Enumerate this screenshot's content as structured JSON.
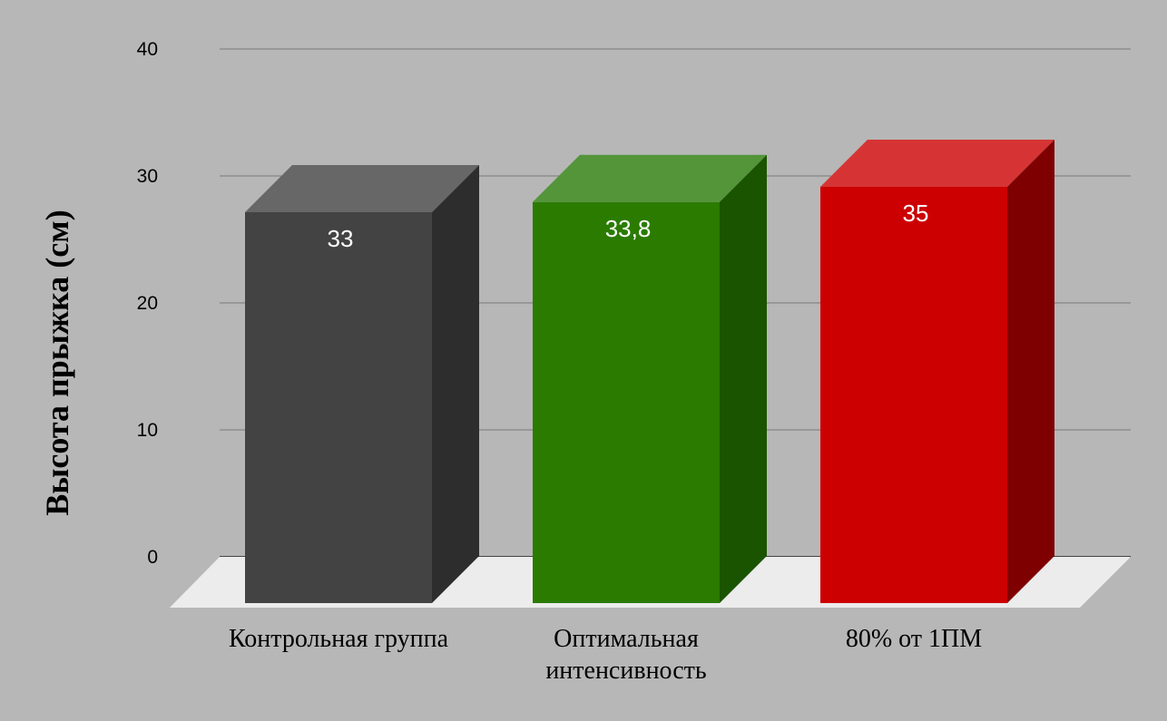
{
  "chart_data": {
    "type": "bar",
    "style": "3d-column",
    "categories": [
      [
        "Контрольная группа"
      ],
      [
        "Оптимальная",
        "интенсивность"
      ],
      [
        "80% от 1ПМ"
      ]
    ],
    "values": [
      33,
      33.8,
      35
    ],
    "data_labels": [
      "33",
      "33,8",
      "35"
    ],
    "title": "",
    "xlabel": "",
    "ylabel": "Высота прыжка (см)",
    "ylim": [
      0,
      40
    ],
    "yticks": [
      0,
      10,
      20,
      30,
      40
    ],
    "grid": true,
    "legend": "none",
    "colors": {
      "background": "#b7b7b7",
      "floor": "#ececec",
      "gridline": "#7a7a7a",
      "bars": [
        {
          "front": "#434343",
          "side": "#2d2d2d",
          "top": "#676767"
        },
        {
          "front": "#2b7b01",
          "side": "#1b5400",
          "top": "#54953a"
        },
        {
          "front": "#cc0000",
          "side": "#7f0000",
          "top": "#d63434"
        }
      ]
    }
  }
}
